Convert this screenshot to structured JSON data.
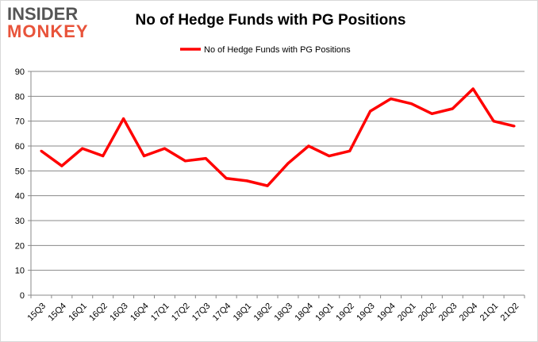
{
  "logo": {
    "line1": "INSIDER",
    "line2": "MONKEY"
  },
  "chart_data": {
    "type": "line",
    "title": "No of Hedge Funds with PG Positions",
    "xlabel": "",
    "ylabel": "",
    "categories": [
      "15Q3",
      "15Q4",
      "16Q1",
      "16Q2",
      "16Q3",
      "16Q4",
      "17Q1",
      "17Q2",
      "17Q3",
      "17Q4",
      "18Q1",
      "18Q2",
      "18Q3",
      "18Q4",
      "19Q1",
      "19Q2",
      "19Q3",
      "19Q4",
      "20Q1",
      "20Q2",
      "20Q3",
      "20Q4",
      "21Q1",
      "21Q2"
    ],
    "series": [
      {
        "name": "No of Hedge Funds with PG Positions",
        "color": "#ff0000",
        "values": [
          58,
          52,
          59,
          56,
          71,
          56,
          59,
          54,
          55,
          47,
          46,
          44,
          53,
          60,
          56,
          58,
          74,
          79,
          77,
          73,
          75,
          83,
          70,
          68
        ]
      }
    ],
    "ylim": [
      0,
      90
    ],
    "yticks": [
      0,
      10,
      20,
      30,
      40,
      50,
      60,
      70,
      80,
      90
    ],
    "grid": true,
    "legend": "top-center"
  }
}
